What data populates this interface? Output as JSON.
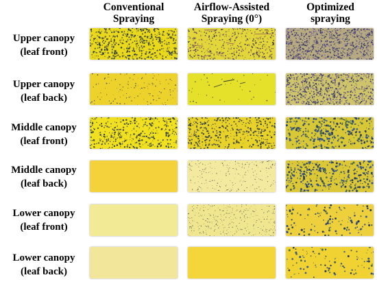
{
  "columns": [
    {
      "line1": "Conventional",
      "line2": "Spraying"
    },
    {
      "line1": "Airflow-Assisted",
      "line2": "Spraying (0°)"
    },
    {
      "line1": "Optimized",
      "line2": "spraying"
    }
  ],
  "rows": [
    {
      "line1": "Upper canopy",
      "line2": "(leaf front)"
    },
    {
      "line1": "Upper canopy",
      "line2": "(leaf back)"
    },
    {
      "line1": "Middle canopy",
      "line2": "(leaf front)"
    },
    {
      "line1": "Middle canopy",
      "line2": "(leaf back)"
    },
    {
      "line1": "Lower canopy",
      "line2": "(leaf front)"
    },
    {
      "line1": "Lower canopy",
      "line2": "(leaf back)"
    }
  ],
  "colors": {
    "paper_bright": "#f2e61e",
    "paper_pale": "#f3e89a",
    "paper_orange": "#f1d23a",
    "droplet_dark": "#2a3a5a",
    "droplet_purple": "#6a5a9a"
  },
  "cards": [
    [
      {
        "base": "#e9d81c",
        "density": 0.95,
        "style": "heavy"
      },
      {
        "base": "#e2d63a",
        "density": 0.85,
        "style": "streak"
      },
      {
        "base": "#b8aa80",
        "density": 1.0,
        "style": "saturated"
      }
    ],
    [
      {
        "base": "#eed22c",
        "density": 0.35,
        "style": "fine"
      },
      {
        "base": "#e5e02a",
        "density": 0.12,
        "style": "sparse"
      },
      {
        "base": "#cfc46a",
        "density": 0.9,
        "style": "saturated"
      }
    ],
    [
      {
        "base": "#f0e020",
        "density": 0.7,
        "style": "heavy"
      },
      {
        "base": "#e8d22a",
        "density": 0.8,
        "style": "heavy"
      },
      {
        "base": "#d8c838",
        "density": 0.85,
        "style": "blotch"
      }
    ],
    [
      {
        "base": "#f3d23c",
        "density": 0.0,
        "style": "none"
      },
      {
        "base": "#f3eaa0",
        "density": 0.35,
        "style": "tiny"
      },
      {
        "base": "#dcc836",
        "density": 0.8,
        "style": "blotch"
      }
    ],
    [
      {
        "base": "#f3ea96",
        "density": 0.0,
        "style": "none"
      },
      {
        "base": "#f1e690",
        "density": 0.45,
        "style": "tiny"
      },
      {
        "base": "#eecf3c",
        "density": 0.3,
        "style": "blotch"
      }
    ],
    [
      {
        "base": "#f2e69a",
        "density": 0.0,
        "style": "none"
      },
      {
        "base": "#f4d63a",
        "density": 0.0,
        "style": "none"
      },
      {
        "base": "#f0d232",
        "density": 0.22,
        "style": "blotch"
      }
    ]
  ]
}
